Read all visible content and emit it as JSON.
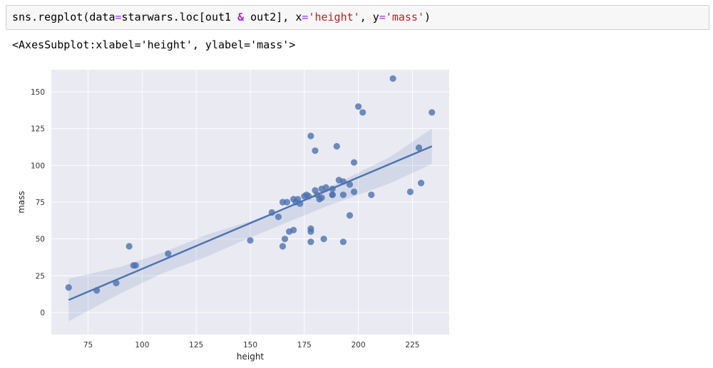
{
  "cell": {
    "code_parts": [
      {
        "text": "sns.regplot(data",
        "cls": ""
      },
      {
        "text": "=",
        "cls": "tok-eq"
      },
      {
        "text": "starwars.loc[out1 ",
        "cls": ""
      },
      {
        "text": "&",
        "cls": "tok-op"
      },
      {
        "text": " out2], x",
        "cls": ""
      },
      {
        "text": "=",
        "cls": "tok-eq"
      },
      {
        "text": "'height'",
        "cls": "tok-str"
      },
      {
        "text": ", y",
        "cls": ""
      },
      {
        "text": "=",
        "cls": "tok-eq"
      },
      {
        "text": "'mass'",
        "cls": "tok-str"
      },
      {
        "text": ")",
        "cls": ""
      }
    ],
    "output_repr": "<AxesSubplot:xlabel='height', ylabel='mass'>"
  },
  "colors": {
    "point": "#4c72b0",
    "line": "#4c72b0",
    "band": "#4c72b0",
    "axes_bg": "#eaeaf2",
    "grid": "#ffffff",
    "string": "#ba2121",
    "operator": "#aa22ff"
  },
  "chart_data": {
    "type": "scatter",
    "kind": "regplot",
    "xlabel": "height",
    "ylabel": "mass",
    "xlim": [
      58,
      242
    ],
    "ylim": [
      -15,
      165
    ],
    "xticks": [
      75,
      100,
      125,
      150,
      175,
      200,
      225
    ],
    "yticks": [
      0,
      25,
      50,
      75,
      100,
      125,
      150
    ],
    "grid": true,
    "points": [
      [
        66,
        17
      ],
      [
        79,
        15
      ],
      [
        88,
        20
      ],
      [
        94,
        45
      ],
      [
        96,
        32
      ],
      [
        97,
        32
      ],
      [
        112,
        40
      ],
      [
        150,
        49
      ],
      [
        160,
        68
      ],
      [
        163,
        65
      ],
      [
        165,
        75
      ],
      [
        165,
        45
      ],
      [
        166,
        50
      ],
      [
        167,
        75
      ],
      [
        168,
        55
      ],
      [
        170,
        56
      ],
      [
        170,
        77
      ],
      [
        171,
        75
      ],
      [
        172,
        77
      ],
      [
        173,
        74
      ],
      [
        175,
        79
      ],
      [
        176,
        80
      ],
      [
        177,
        79
      ],
      [
        178,
        120
      ],
      [
        178,
        48
      ],
      [
        178,
        57
      ],
      [
        178,
        55
      ],
      [
        180,
        110
      ],
      [
        180,
        83
      ],
      [
        181,
        80
      ],
      [
        182,
        77
      ],
      [
        183,
        78
      ],
      [
        183,
        84
      ],
      [
        184,
        50
      ],
      [
        185,
        85
      ],
      [
        188,
        84
      ],
      [
        188,
        80
      ],
      [
        188,
        80
      ],
      [
        190,
        113
      ],
      [
        191,
        90
      ],
      [
        193,
        89
      ],
      [
        193,
        80
      ],
      [
        193,
        48
      ],
      [
        196,
        87
      ],
      [
        196,
        66
      ],
      [
        198,
        102
      ],
      [
        198,
        82
      ],
      [
        200,
        140
      ],
      [
        202,
        136
      ],
      [
        206,
        80
      ],
      [
        216,
        159
      ],
      [
        224,
        82
      ],
      [
        228,
        112
      ],
      [
        229,
        88
      ],
      [
        234,
        136
      ]
    ],
    "regression": {
      "x_start": 66,
      "y_start": 8.5,
      "x_end": 234,
      "y_end": 113
    },
    "ci_band": {
      "x": [
        66,
        90,
        110,
        130,
        150,
        165,
        175,
        185,
        200,
        215,
        234
      ],
      "upper": [
        23,
        31,
        41,
        53,
        62,
        70,
        77,
        84,
        95,
        106,
        125
      ],
      "lower": [
        -6,
        13,
        27,
        38,
        51,
        60,
        66,
        72,
        80,
        88,
        101
      ]
    }
  }
}
